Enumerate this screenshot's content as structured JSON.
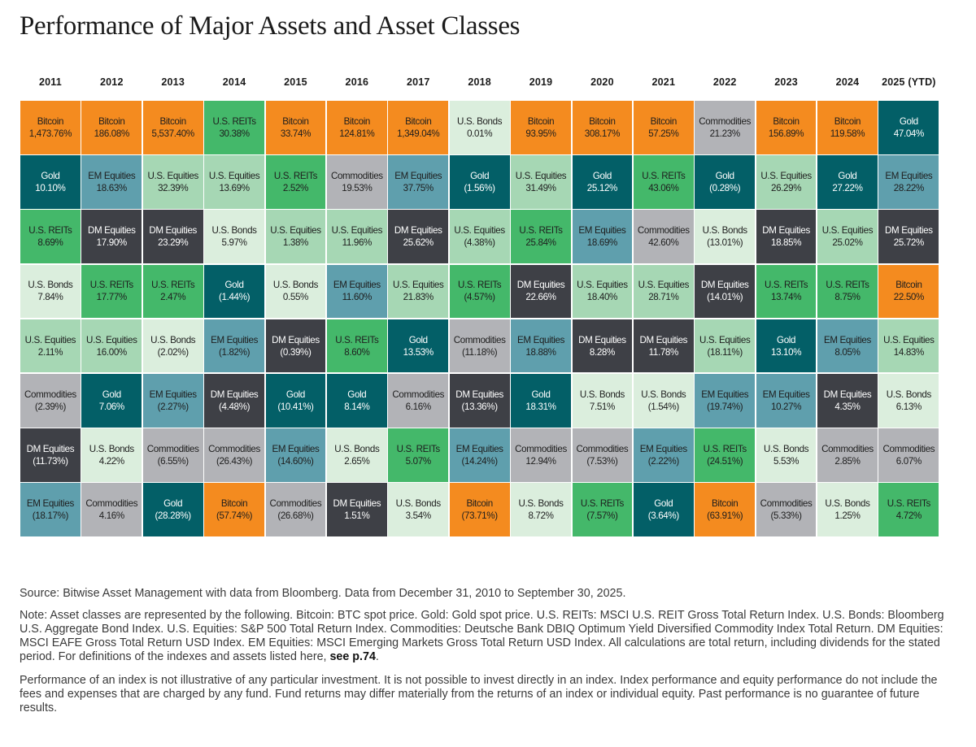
{
  "title": "Performance of Major Assets and Asset Classes",
  "colors": {
    "Bitcoin": "#f48b1f",
    "Gold": "#035f67",
    "U.S. REITs": "#44b86a",
    "U.S. Bonds": "#dbeedd",
    "U.S. Equities": "#a6d7b4",
    "EM Equities": "#5f9fad",
    "DM Equities": "#3e4046",
    "Commodities": "#b2b3b7"
  },
  "text_colors": {
    "Bitcoin": "#1e1e1e",
    "Gold": "#ffffff",
    "U.S. REITs": "#1e1e1e",
    "U.S. Bonds": "#1e1e1e",
    "U.S. Equities": "#1e1e1e",
    "EM Equities": "#1e1e1e",
    "DM Equities": "#ffffff",
    "Commodities": "#1e1e1e"
  },
  "chart_data": {
    "type": "table",
    "title": "Performance of Major Assets and Asset Classes",
    "years": [
      "2011",
      "2012",
      "2013",
      "2014",
      "2015",
      "2016",
      "2017",
      "2018",
      "2019",
      "2020",
      "2021",
      "2022",
      "2023",
      "2024",
      "2025 (YTD)"
    ],
    "columns": [
      [
        [
          "Bitcoin",
          "1,473.76%"
        ],
        [
          "Gold",
          "10.10%"
        ],
        [
          "U.S. REITs",
          "8.69%"
        ],
        [
          "U.S. Bonds",
          "7.84%"
        ],
        [
          "U.S. Equities",
          "2.11%"
        ],
        [
          "Commodities",
          "(2.39%)"
        ],
        [
          "DM Equities",
          "(11.73%)"
        ],
        [
          "EM Equities",
          "(18.17%)"
        ]
      ],
      [
        [
          "Bitcoin",
          "186.08%"
        ],
        [
          "EM Equities",
          "18.63%"
        ],
        [
          "DM Equities",
          "17.90%"
        ],
        [
          "U.S. REITs",
          "17.77%"
        ],
        [
          "U.S. Equities",
          "16.00%"
        ],
        [
          "Gold",
          "7.06%"
        ],
        [
          "U.S. Bonds",
          "4.22%"
        ],
        [
          "Commodities",
          "4.16%"
        ]
      ],
      [
        [
          "Bitcoin",
          "5,537.40%"
        ],
        [
          "U.S. Equities",
          "32.39%"
        ],
        [
          "DM Equities",
          "23.29%"
        ],
        [
          "U.S. REITs",
          "2.47%"
        ],
        [
          "U.S. Bonds",
          "(2.02%)"
        ],
        [
          "EM Equities",
          "(2.27%)"
        ],
        [
          "Commodities",
          "(6.55%)"
        ],
        [
          "Gold",
          "(28.28%)"
        ]
      ],
      [
        [
          "U.S. REITs",
          "30.38%"
        ],
        [
          "U.S. Equities",
          "13.69%"
        ],
        [
          "U.S. Bonds",
          "5.97%"
        ],
        [
          "Gold",
          "(1.44%)"
        ],
        [
          "EM Equities",
          "(1.82%)"
        ],
        [
          "DM Equities",
          "(4.48%)"
        ],
        [
          "Commodities",
          "(26.43%)"
        ],
        [
          "Bitcoin",
          "(57.74%)"
        ]
      ],
      [
        [
          "Bitcoin",
          "33.74%"
        ],
        [
          "U.S. REITs",
          "2.52%"
        ],
        [
          "U.S. Equities",
          "1.38%"
        ],
        [
          "U.S. Bonds",
          "0.55%"
        ],
        [
          "DM Equities",
          "(0.39%)"
        ],
        [
          "Gold",
          "(10.41%)"
        ],
        [
          "EM Equities",
          "(14.60%)"
        ],
        [
          "Commodities",
          "(26.68%)"
        ]
      ],
      [
        [
          "Bitcoin",
          "124.81%"
        ],
        [
          "Commodities",
          "19.53%"
        ],
        [
          "U.S. Equities",
          "11.96%"
        ],
        [
          "EM Equities",
          "11.60%"
        ],
        [
          "U.S. REITs",
          "8.60%"
        ],
        [
          "Gold",
          "8.14%"
        ],
        [
          "U.S. Bonds",
          "2.65%"
        ],
        [
          "DM Equities",
          "1.51%"
        ]
      ],
      [
        [
          "Bitcoin",
          "1,349.04%"
        ],
        [
          "EM Equities",
          "37.75%"
        ],
        [
          "DM Equities",
          "25.62%"
        ],
        [
          "U.S. Equities",
          "21.83%"
        ],
        [
          "Gold",
          "13.53%"
        ],
        [
          "Commodities",
          "6.16%"
        ],
        [
          "U.S. REITs",
          "5.07%"
        ],
        [
          "U.S. Bonds",
          "3.54%"
        ]
      ],
      [
        [
          "U.S. Bonds",
          "0.01%"
        ],
        [
          "Gold",
          "(1.56%)"
        ],
        [
          "U.S. Equities",
          "(4.38%)"
        ],
        [
          "U.S. REITs",
          "(4.57%)"
        ],
        [
          "Commodities",
          "(11.18%)"
        ],
        [
          "DM Equities",
          "(13.36%)"
        ],
        [
          "EM Equities",
          "(14.24%)"
        ],
        [
          "Bitcoin",
          "(73.71%)"
        ]
      ],
      [
        [
          "Bitcoin",
          "93.95%"
        ],
        [
          "U.S. Equities",
          "31.49%"
        ],
        [
          "U.S. REITs",
          "25.84%"
        ],
        [
          "DM Equities",
          "22.66%"
        ],
        [
          "EM Equities",
          "18.88%"
        ],
        [
          "Gold",
          "18.31%"
        ],
        [
          "Commodities",
          "12.94%"
        ],
        [
          "U.S. Bonds",
          "8.72%"
        ]
      ],
      [
        [
          "Bitcoin",
          "308.17%"
        ],
        [
          "Gold",
          "25.12%"
        ],
        [
          "EM Equities",
          "18.69%"
        ],
        [
          "U.S. Equities",
          "18.40%"
        ],
        [
          "DM Equities",
          "8.28%"
        ],
        [
          "U.S. Bonds",
          "7.51%"
        ],
        [
          "Commodities",
          "(7.53%)"
        ],
        [
          "U.S. REITs",
          "(7.57%)"
        ]
      ],
      [
        [
          "Bitcoin",
          "57.25%"
        ],
        [
          "U.S. REITs",
          "43.06%"
        ],
        [
          "Commodities",
          "42.60%"
        ],
        [
          "U.S. Equities",
          "28.71%"
        ],
        [
          "DM Equities",
          "11.78%"
        ],
        [
          "U.S. Bonds",
          "(1.54%)"
        ],
        [
          "EM Equities",
          "(2.22%)"
        ],
        [
          "Gold",
          "(3.64%)"
        ]
      ],
      [
        [
          "Commodities",
          "21.23%"
        ],
        [
          "Gold",
          "(0.28%)"
        ],
        [
          "U.S. Bonds",
          "(13.01%)"
        ],
        [
          "DM Equities",
          "(14.01%)"
        ],
        [
          "U.S. Equities",
          "(18.11%)"
        ],
        [
          "EM Equities",
          "(19.74%)"
        ],
        [
          "U.S. REITs",
          "(24.51%)"
        ],
        [
          "Bitcoin",
          "(63.91%)"
        ]
      ],
      [
        [
          "Bitcoin",
          "156.89%"
        ],
        [
          "U.S. Equities",
          "26.29%"
        ],
        [
          "DM Equities",
          "18.85%"
        ],
        [
          "U.S. REITs",
          "13.74%"
        ],
        [
          "Gold",
          "13.10%"
        ],
        [
          "EM Equities",
          "10.27%"
        ],
        [
          "U.S. Bonds",
          "5.53%"
        ],
        [
          "Commodities",
          "(5.33%)"
        ]
      ],
      [
        [
          "Bitcoin",
          "119.58%"
        ],
        [
          "Gold",
          "27.22%"
        ],
        [
          "U.S. Equities",
          "25.02%"
        ],
        [
          "U.S. REITs",
          "8.75%"
        ],
        [
          "EM Equities",
          "8.05%"
        ],
        [
          "DM Equities",
          "4.35%"
        ],
        [
          "Commodities",
          "2.85%"
        ],
        [
          "U.S. Bonds",
          "1.25%"
        ]
      ],
      [
        [
          "Gold",
          "47.04%"
        ],
        [
          "EM Equities",
          "28.22%"
        ],
        [
          "DM Equities",
          "25.72%"
        ],
        [
          "Bitcoin",
          "22.50%"
        ],
        [
          "U.S. Equities",
          "14.83%"
        ],
        [
          "U.S. Bonds",
          "6.13%"
        ],
        [
          "Commodities",
          "6.07%"
        ],
        [
          "U.S. REITs",
          "4.72%"
        ]
      ]
    ]
  },
  "footer": {
    "source": "Source: Bitwise Asset Management with data from Bloomberg. Data from December 31, 2010 to September 30, 2025.",
    "note": "Note: Asset classes are represented by the following. Bitcoin: BTC spot price. Gold: Gold spot price. U.S. REITs: MSCI U.S. REIT Gross Total Return Index. U.S. Bonds: Bloomberg U.S. Aggregate Bond Index. U.S. Equities: S&P 500 Total Return Index. Commodities: Deutsche Bank DBIQ Optimum Yield Diversified Commodity Index Total Return. DM Equities: MSCI EAFE Gross Total Return USD Index. EM Equities: MSCI Emerging Markets Gross Total Return USD Index. All calculations are total return, including dividends for the stated period. For definitions of the indexes and assets listed here,",
    "note_link": "see p.74",
    "note_end": ".",
    "disclaimer": "Performance of an index is not illustrative of any particular investment. It is not possible to invest directly in an index. Index performance and equity performance do not include the fees and expenses that are charged by any fund. Fund returns may differ materially from the returns of an index or individual equity. Past performance is no guarantee of future results."
  }
}
